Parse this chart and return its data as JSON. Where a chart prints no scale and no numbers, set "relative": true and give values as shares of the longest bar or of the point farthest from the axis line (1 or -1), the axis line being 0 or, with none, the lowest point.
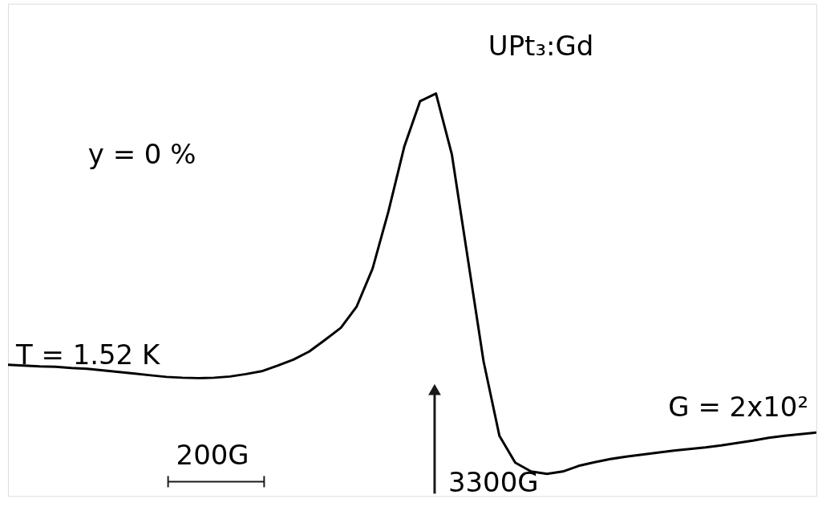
{
  "chart_data": {
    "type": "line",
    "relative": true,
    "color": "#000000",
    "categories": [
      null,
      null,
      null,
      null,
      null,
      null,
      null,
      null,
      null,
      null,
      null,
      null,
      null,
      null,
      null,
      null,
      null,
      null,
      null,
      null,
      null,
      null,
      null,
      null,
      null,
      null,
      null,
      null,
      null,
      null,
      null,
      null,
      null,
      null,
      null,
      null,
      null,
      null,
      null,
      null,
      null,
      null,
      null,
      null,
      null,
      null,
      null,
      null,
      null,
      null,
      null,
      null
    ],
    "values": [
      0.326,
      0.324,
      0.322,
      0.321,
      0.318,
      0.316,
      0.312,
      0.308,
      0.304,
      0.3,
      0.296,
      0.294,
      0.293,
      0.294,
      0.297,
      0.303,
      0.31,
      0.324,
      0.339,
      0.359,
      0.388,
      0.418,
      0.471,
      0.565,
      0.707,
      0.868,
      0.981,
      1.0,
      0.849,
      0.592,
      0.335,
      0.15,
      0.083,
      0.061,
      0.055,
      0.061,
      0.075,
      0.084,
      0.092,
      0.098,
      0.103,
      0.108,
      0.113,
      0.117,
      0.121,
      0.126,
      0.132,
      0.138,
      0.145,
      0.15,
      0.154,
      0.158
    ],
    "annotations": [
      "UPt₃:Gd",
      "y = 0 %",
      "T = 1.52 K",
      "G = 2x10²",
      "200G",
      "3300G"
    ],
    "marker": "none",
    "line_style": "solid"
  }
}
